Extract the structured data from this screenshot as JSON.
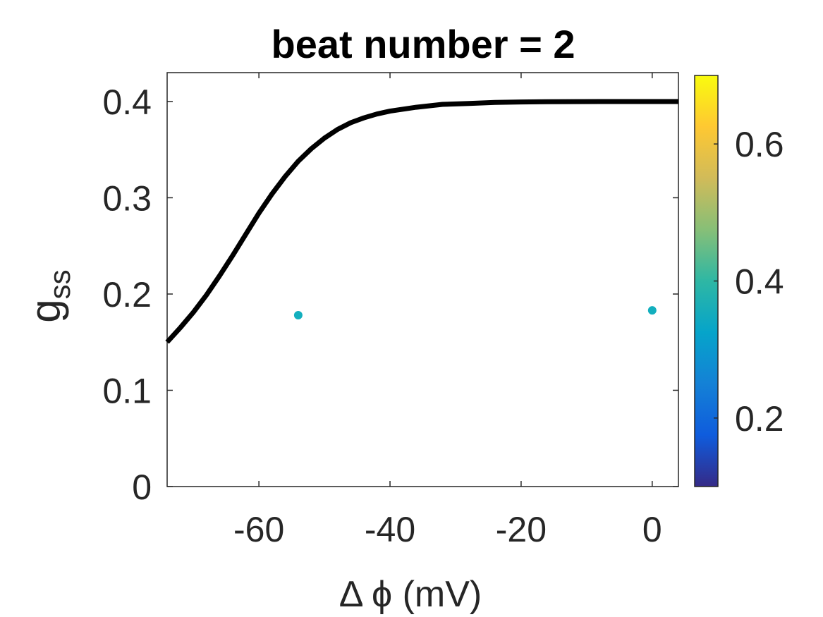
{
  "chart_data": {
    "type": "scatter",
    "title": "beat number = 2",
    "xlabel": "Δ ϕ (mV)",
    "ylabel_main": "g",
    "ylabel_sub": "ss",
    "xlim": [
      -74,
      4
    ],
    "ylim": [
      0,
      0.43
    ],
    "xticks": [
      -60,
      -40,
      -20,
      0
    ],
    "xtick_labels": [
      "-60",
      "-40",
      "-20",
      "0"
    ],
    "yticks": [
      0,
      0.1,
      0.2,
      0.3,
      0.4
    ],
    "ytick_labels": [
      "0",
      "0.1",
      "0.2",
      "0.3",
      "0.4"
    ],
    "grid": false,
    "curve": {
      "color": "#000000",
      "points": [
        [
          -74,
          0.15
        ],
        [
          -72,
          0.165
        ],
        [
          -70,
          0.181
        ],
        [
          -68,
          0.199
        ],
        [
          -66,
          0.219
        ],
        [
          -64,
          0.24
        ],
        [
          -62,
          0.262
        ],
        [
          -60,
          0.284
        ],
        [
          -58,
          0.304
        ],
        [
          -56,
          0.322
        ],
        [
          -54,
          0.338
        ],
        [
          -52,
          0.351
        ],
        [
          -50,
          0.362
        ],
        [
          -48,
          0.371
        ],
        [
          -46,
          0.378
        ],
        [
          -44,
          0.383
        ],
        [
          -42,
          0.387
        ],
        [
          -40,
          0.39
        ],
        [
          -36,
          0.394
        ],
        [
          -32,
          0.397
        ],
        [
          -28,
          0.398
        ],
        [
          -24,
          0.399
        ],
        [
          -20,
          0.3995
        ],
        [
          -16,
          0.3998
        ],
        [
          -12,
          0.3999
        ],
        [
          -8,
          0.4
        ],
        [
          -4,
          0.4
        ],
        [
          0,
          0.4
        ],
        [
          4,
          0.4
        ]
      ]
    },
    "points": [
      {
        "x": -54,
        "y": 0.178,
        "color": "#13AFBE"
      },
      {
        "x": 0,
        "y": 0.183,
        "color": "#13AFBE"
      }
    ],
    "colorbar": {
      "range": [
        0.1,
        0.7
      ],
      "ticks": [
        0.2,
        0.4,
        0.6
      ],
      "tick_labels": [
        "0.2",
        "0.4",
        "0.6"
      ],
      "colormap": [
        "#352A87",
        "#0F5CDD",
        "#1481D6",
        "#06A4CA",
        "#2EB7A4",
        "#87BF77",
        "#D1BB59",
        "#FEC832",
        "#F9FB0E"
      ]
    }
  }
}
